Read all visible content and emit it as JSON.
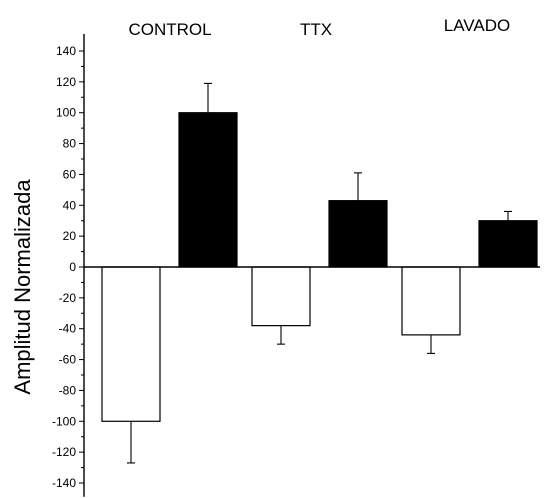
{
  "chart_data": {
    "type": "bar",
    "ylabel": "Amplitud Normalizada",
    "ylim": [
      -145,
      145
    ],
    "yticks": [
      -140,
      -120,
      -100,
      -80,
      -60,
      -40,
      -20,
      0,
      20,
      40,
      60,
      80,
      100,
      120,
      140
    ],
    "categories": [
      "CONTROL",
      "TTX",
      "LAVADO"
    ],
    "series": [
      {
        "color": "#ffffff",
        "values": [
          -100,
          -38,
          -44
        ],
        "errors": [
          27,
          12,
          12
        ]
      },
      {
        "color": "#000000",
        "values": [
          100,
          43,
          30
        ],
        "errors": [
          19,
          18,
          6
        ]
      }
    ]
  }
}
